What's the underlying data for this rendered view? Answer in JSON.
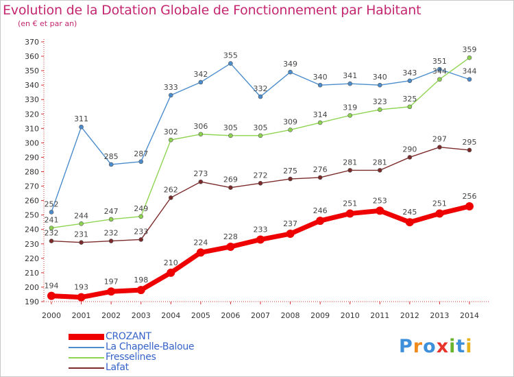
{
  "title": "Evolution de la Dotation Globale de Fonctionnement par Habitant",
  "subtitle": "(en € et par an)",
  "logo": {
    "text": "Proxiti",
    "letters": [
      {
        "ch": "P",
        "color": "#3c8fd8"
      },
      {
        "ch": "r",
        "color": "#f08a1c"
      },
      {
        "ch": "o",
        "color": "#3c8fd8"
      },
      {
        "ch": "x",
        "color": "#e8332a"
      },
      {
        "ch": "i",
        "color": "#6ab42d"
      },
      {
        "ch": "t",
        "color": "#3c8fd8"
      },
      {
        "ch": "i",
        "color": "#e8b21c"
      }
    ]
  },
  "chart_data": {
    "type": "line",
    "title": "Evolution de la Dotation Globale de Fonctionnement par Habitant",
    "subtitle": "(en € et par an)",
    "x": [
      "2000",
      "2001",
      "2002",
      "2003",
      "2004",
      "2005",
      "2006",
      "2007",
      "2008",
      "2009",
      "2010",
      "2011",
      "2012",
      "2013",
      "2014"
    ],
    "ylim": [
      190,
      370
    ],
    "yticks": [
      190,
      200,
      210,
      220,
      230,
      240,
      250,
      260,
      270,
      280,
      290,
      300,
      310,
      320,
      330,
      340,
      350,
      360,
      370
    ],
    "grid": false,
    "legend_position": "bottom-left",
    "series": [
      {
        "name": "La Chapelle-Baloue",
        "color": "#4a8ccc",
        "values": [
          252,
          311,
          285,
          287,
          333,
          342,
          355,
          332,
          349,
          340,
          341,
          340,
          343,
          351,
          344
        ]
      },
      {
        "name": "Fresselines",
        "color": "#8ed451",
        "values": [
          241,
          244,
          247,
          249,
          302,
          306,
          305,
          305,
          309,
          314,
          319,
          323,
          325,
          344,
          359
        ]
      },
      {
        "name": "Lafat",
        "color": "#7b2a2a",
        "values": [
          232,
          231,
          232,
          233,
          262,
          273,
          269,
          272,
          275,
          276,
          281,
          281,
          290,
          297,
          295
        ]
      },
      {
        "name": "CROZANT",
        "color": "#ee0000",
        "values": [
          194,
          193,
          197,
          198,
          210,
          224,
          228,
          233,
          237,
          246,
          251,
          253,
          245,
          251,
          256
        ]
      }
    ]
  },
  "legend": [
    {
      "name": "CROZANT",
      "color": "#ee0000"
    },
    {
      "name": "La Chapelle-Baloue",
      "color": "#4a8ccc"
    },
    {
      "name": "Fresselines",
      "color": "#8ed451"
    },
    {
      "name": "Lafat",
      "color": "#7b2a2a"
    }
  ]
}
